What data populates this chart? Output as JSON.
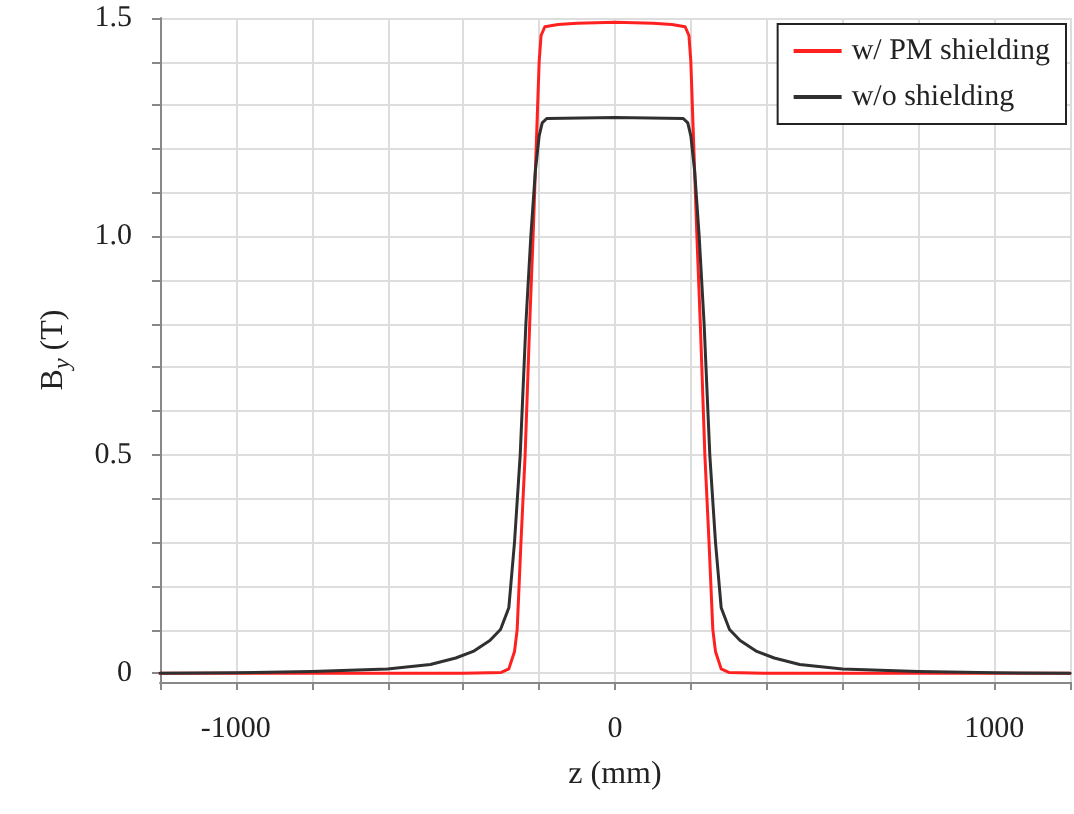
{
  "chart_data": {
    "type": "line",
    "xlabel": "z (mm)",
    "ylabel": "B$_{y}$ (T)",
    "xlim": [
      -1200,
      1200
    ],
    "xticks": [
      {
        "value": -1200,
        "label": null
      },
      -1000,
      {
        "value": -800,
        "label": null
      },
      {
        "value": -600,
        "label": null
      },
      {
        "value": -400,
        "label": null
      },
      {
        "value": -200,
        "label": null
      },
      0,
      {
        "value": 200,
        "label": null
      },
      {
        "value": 400,
        "label": null
      },
      {
        "value": 600,
        "label": null
      },
      {
        "value": 800,
        "label": null
      },
      1000,
      {
        "value": 1200,
        "label": null
      }
    ],
    "ylim": [
      -0.02,
      1.5
    ],
    "yticks": [
      0,
      {
        "value": 0.1,
        "label": null
      },
      {
        "value": 0.2,
        "label": null
      },
      {
        "value": 0.3,
        "label": null
      },
      {
        "value": 0.4,
        "label": null
      },
      0.5,
      {
        "value": 0.6,
        "label": null
      },
      {
        "value": 0.7,
        "label": null
      },
      {
        "value": 0.8,
        "label": null
      },
      {
        "value": 0.9,
        "label": null
      },
      {
        "value": 1.0,
        "label": "1.0"
      },
      {
        "value": 1.1,
        "label": null
      },
      {
        "value": 1.2,
        "label": null
      },
      {
        "value": 1.3,
        "label": null
      },
      {
        "value": 1.4,
        "label": null
      },
      1.5
    ],
    "grid": true,
    "legend": "top right",
    "line_style": "solid",
    "marker": "none",
    "series": [
      {
        "name": "w/ PM shielding",
        "color": "#ff2020",
        "x": [
          -1200,
          -400,
          -300,
          -280,
          -265,
          -258,
          -248,
          -237,
          -225,
          -216,
          -206,
          -200,
          -195,
          -185,
          -150,
          -100,
          0,
          100,
          150,
          185,
          195,
          200,
          206,
          216,
          225,
          237,
          248,
          258,
          265,
          280,
          300,
          400,
          1200
        ],
        "values": [
          0,
          0,
          0.002,
          0.01,
          0.05,
          0.1,
          0.3,
          0.5,
          0.8,
          1.0,
          1.25,
          1.4,
          1.46,
          1.48,
          1.485,
          1.488,
          1.49,
          1.488,
          1.485,
          1.48,
          1.46,
          1.4,
          1.25,
          1.0,
          0.8,
          0.5,
          0.3,
          0.1,
          0.05,
          0.01,
          0.002,
          0,
          0
        ]
      },
      {
        "name": "w/o shielding",
        "color": "#303030",
        "x": [
          -1200,
          -1000,
          -800,
          -600,
          -487,
          -420,
          -374,
          -330,
          -302,
          -280,
          -265,
          -250,
          -235,
          -222,
          -210,
          -200,
          -192,
          -180,
          0,
          180,
          192,
          200,
          210,
          222,
          235,
          250,
          265,
          280,
          302,
          330,
          374,
          420,
          487,
          600,
          800,
          1000,
          1200
        ],
        "values": [
          0,
          0.001,
          0.004,
          0.01,
          0.02,
          0.035,
          0.05,
          0.075,
          0.1,
          0.15,
          0.3,
          0.5,
          0.8,
          1.0,
          1.15,
          1.23,
          1.26,
          1.27,
          1.272,
          1.27,
          1.26,
          1.23,
          1.15,
          1.0,
          0.8,
          0.5,
          0.3,
          0.15,
          0.1,
          0.075,
          0.05,
          0.035,
          0.02,
          0.01,
          0.004,
          0.001,
          0
        ]
      }
    ]
  }
}
